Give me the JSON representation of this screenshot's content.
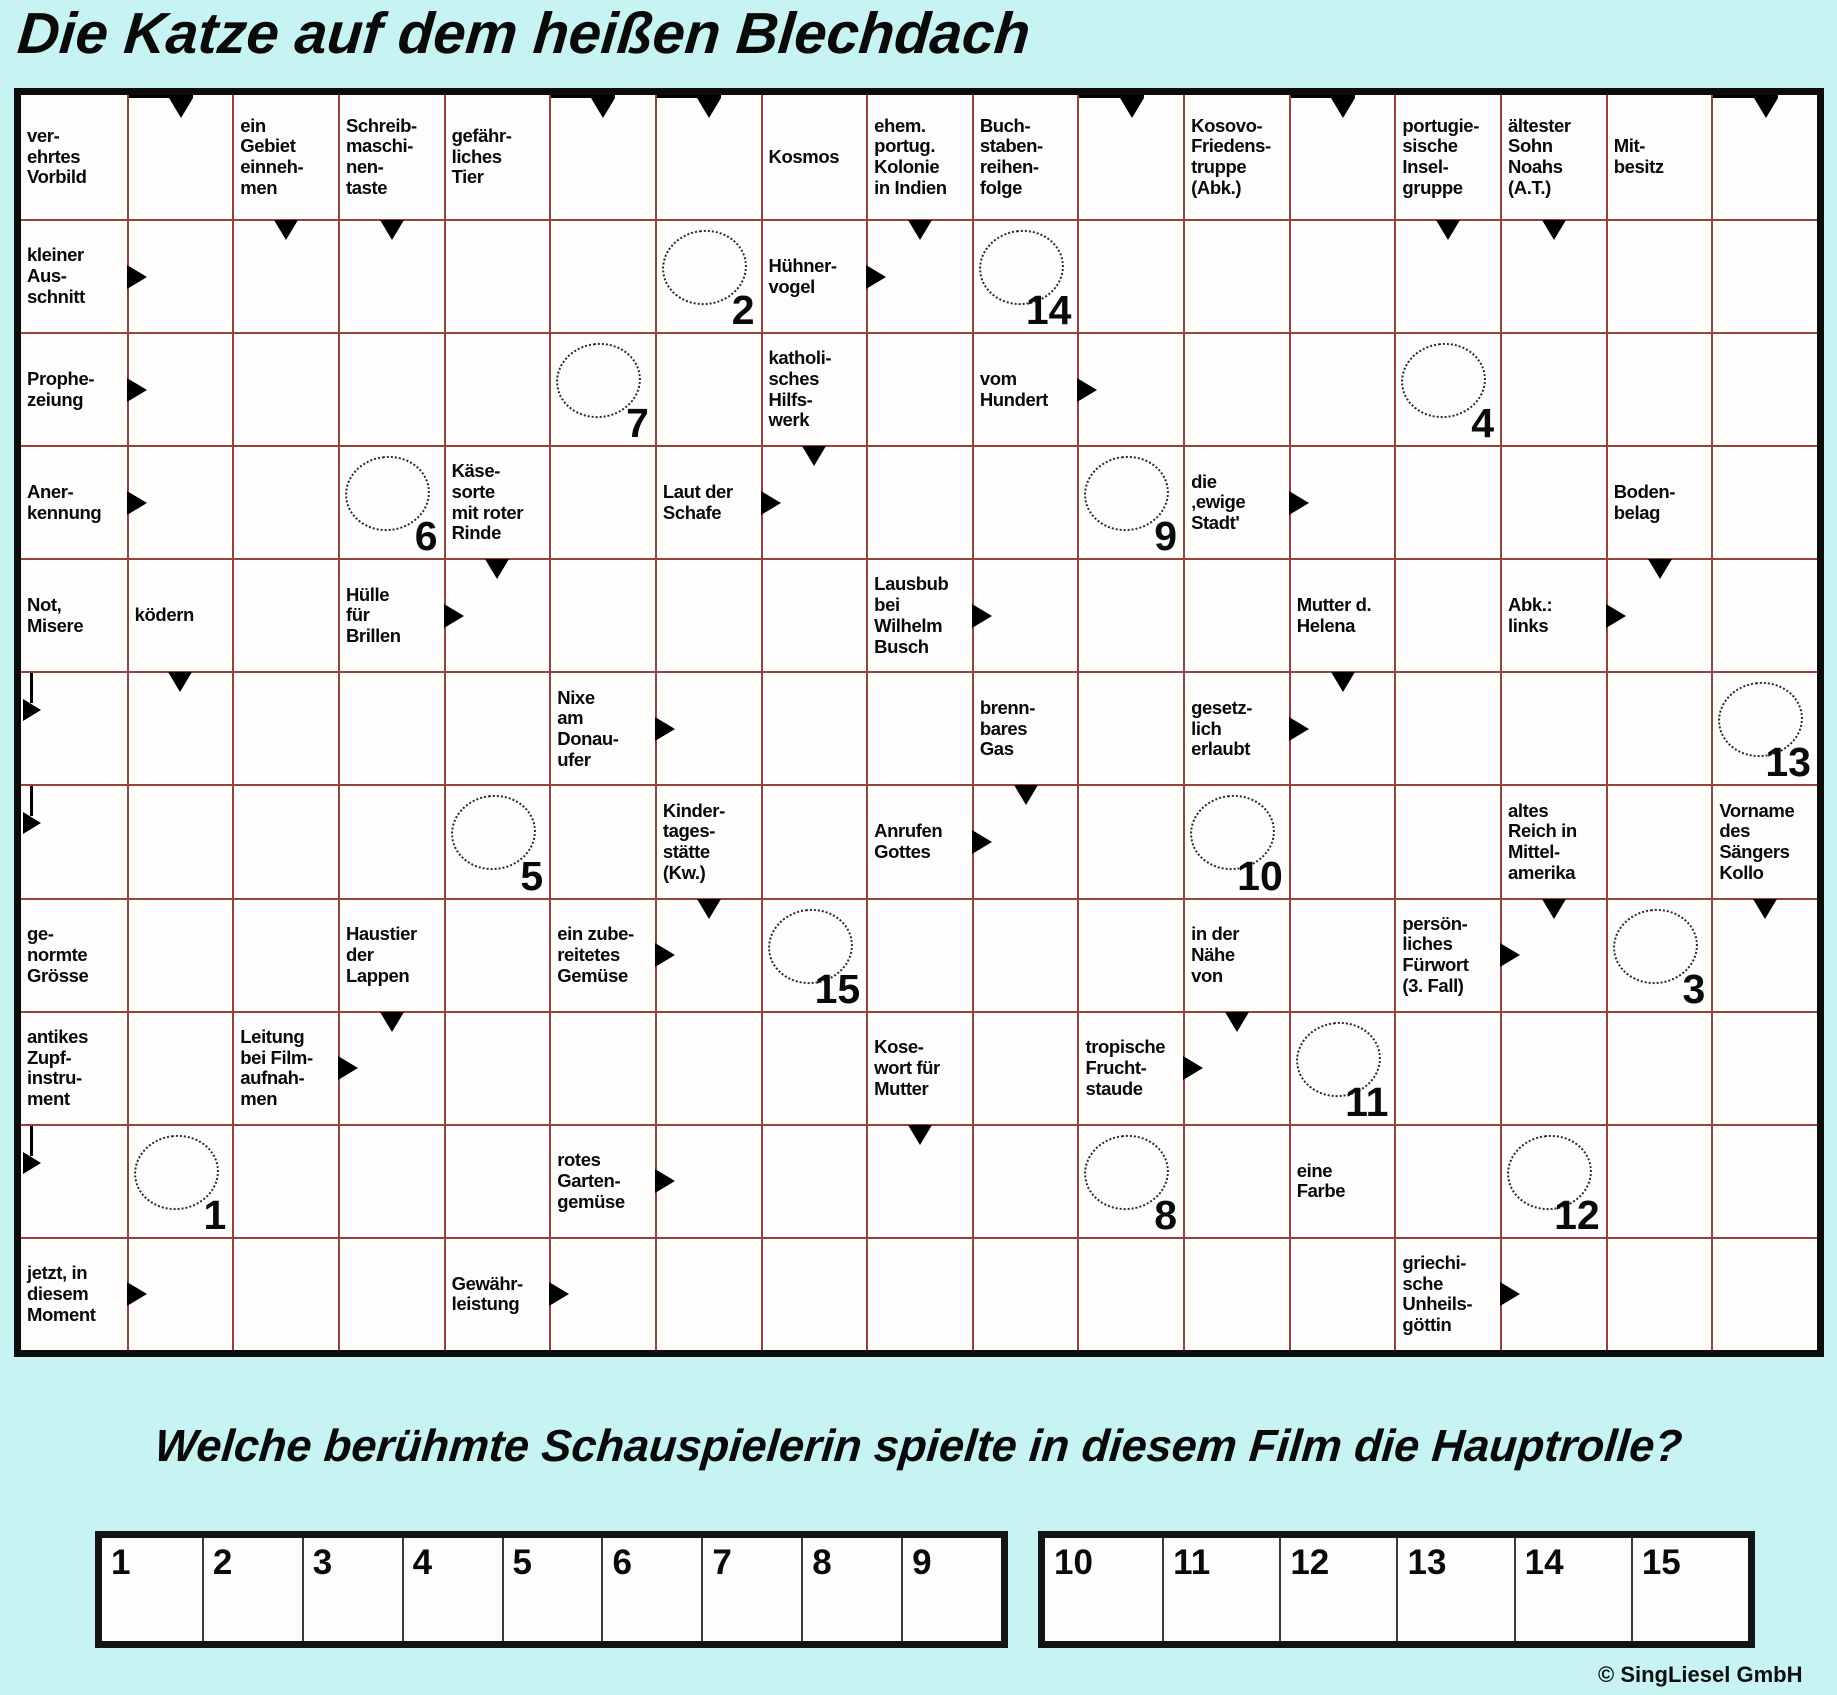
{
  "title": "Die Katze auf dem heißen Blechdach",
  "question": "Welche berühmte Schauspielerin spielte in diesem Film die Hauptrolle?",
  "copyright": "© SingLiesel GmbH",
  "colors": {
    "background": "#c7f4f2",
    "grid_line": "#96413c",
    "cell_background": "#fffdfc",
    "ink": "#000000",
    "border": "#0c0c0c"
  },
  "puzzle": {
    "cols": 17,
    "rows": 11,
    "clues": [
      {
        "r": 1,
        "c": 1,
        "text": "ver-\nehrtes\nVorbild"
      },
      {
        "r": 1,
        "c": 3,
        "text": "ein\nGebiet\neinneh-\nmen"
      },
      {
        "r": 1,
        "c": 4,
        "text": "Schreib-\nmaschi-\nnen-\ntaste"
      },
      {
        "r": 1,
        "c": 5,
        "text": "gefähr-\nliches\nTier"
      },
      {
        "r": 1,
        "c": 8,
        "text": "Kosmos"
      },
      {
        "r": 1,
        "c": 9,
        "text": "ehem.\nportug.\nKolonie\nin Indien"
      },
      {
        "r": 1,
        "c": 10,
        "text": "Buch-\nstaben-\nreihen-\nfolge"
      },
      {
        "r": 1,
        "c": 12,
        "text": "Kosovo-\nFriedens-\ntruppe\n(Abk.)"
      },
      {
        "r": 1,
        "c": 14,
        "text": "portugie-\nsische\nInsel-\ngruppe"
      },
      {
        "r": 1,
        "c": 15,
        "text": "ältester\nSohn\nNoahs\n(A.T.)"
      },
      {
        "r": 1,
        "c": 16,
        "text": "Mit-\nbesitz"
      },
      {
        "r": 2,
        "c": 1,
        "text": "kleiner\nAus-\nschnitt"
      },
      {
        "r": 2,
        "c": 8,
        "text": "Hühner-\nvogel"
      },
      {
        "r": 3,
        "c": 1,
        "text": "Prophe-\nzeiung"
      },
      {
        "r": 3,
        "c": 8,
        "text": "katholi-\nsches\nHilfs-\nwerk"
      },
      {
        "r": 3,
        "c": 10,
        "text": "vom\nHundert"
      },
      {
        "r": 4,
        "c": 1,
        "text": "Aner-\nkennung"
      },
      {
        "r": 4,
        "c": 5,
        "text": "Käse-\nsorte\nmit roter\nRinde"
      },
      {
        "r": 4,
        "c": 7,
        "text": "Laut der\nSchafe"
      },
      {
        "r": 4,
        "c": 12,
        "text": "die\n‚ewige\nStadt'"
      },
      {
        "r": 4,
        "c": 16,
        "text": "Boden-\nbelag"
      },
      {
        "r": 5,
        "c": 1,
        "text": "Not,\nMisere"
      },
      {
        "r": 5,
        "c": 2,
        "text": "ködern"
      },
      {
        "r": 5,
        "c": 4,
        "text": "Hülle\nfür\nBrillen"
      },
      {
        "r": 5,
        "c": 9,
        "text": "Lausbub\nbei\nWilhelm\nBusch"
      },
      {
        "r": 5,
        "c": 13,
        "text": "Mutter d.\nHelena"
      },
      {
        "r": 5,
        "c": 15,
        "text": "Abk.:\nlinks"
      },
      {
        "r": 6,
        "c": 6,
        "text": "Nixe\nam\nDonau-\nufer"
      },
      {
        "r": 6,
        "c": 10,
        "text": "brenn-\nbares\nGas"
      },
      {
        "r": 6,
        "c": 12,
        "text": "gesetz-\nlich\nerlaubt"
      },
      {
        "r": 7,
        "c": 7,
        "text": "Kinder-\ntages-\nstätte\n(Kw.)"
      },
      {
        "r": 7,
        "c": 9,
        "text": "Anrufen\nGottes"
      },
      {
        "r": 7,
        "c": 15,
        "text": "altes\nReich in\nMittel-\namerika"
      },
      {
        "r": 7,
        "c": 17,
        "text": "Vorname\ndes\nSängers\nKollo"
      },
      {
        "r": 8,
        "c": 1,
        "text": "ge-\nnormte\nGrösse"
      },
      {
        "r": 8,
        "c": 4,
        "text": "Haustier\nder\nLappen"
      },
      {
        "r": 8,
        "c": 6,
        "text": "ein zube-\nreitetes\nGemüse"
      },
      {
        "r": 8,
        "c": 12,
        "text": "in der\nNähe\nvon"
      },
      {
        "r": 8,
        "c": 14,
        "text": "persön-\nliches\nFürwort\n(3. Fall)"
      },
      {
        "r": 9,
        "c": 1,
        "text": "antikes\nZupf-\ninstru-\nment"
      },
      {
        "r": 9,
        "c": 3,
        "text": "Leitung\nbei Film-\naufnah-\nmen"
      },
      {
        "r": 9,
        "c": 9,
        "text": "Kose-\nwort für\nMutter"
      },
      {
        "r": 9,
        "c": 11,
        "text": "tropische\nFrucht-\nstaude"
      },
      {
        "r": 10,
        "c": 6,
        "text": "rotes\nGarten-\ngemüse"
      },
      {
        "r": 10,
        "c": 13,
        "text": "eine\nFarbe"
      },
      {
        "r": 11,
        "c": 1,
        "text": "jetzt, in\ndiesem\nMoment"
      },
      {
        "r": 11,
        "c": 5,
        "text": "Gewähr-\nleistung"
      },
      {
        "r": 11,
        "c": 14,
        "text": "griechi-\nsche\nUnheils-\ngöttin"
      }
    ],
    "circles": [
      {
        "r": 2,
        "c": 7,
        "n": "2"
      },
      {
        "r": 2,
        "c": 10,
        "n": "14"
      },
      {
        "r": 3,
        "c": 6,
        "n": "7"
      },
      {
        "r": 3,
        "c": 14,
        "n": "4"
      },
      {
        "r": 4,
        "c": 4,
        "n": "6"
      },
      {
        "r": 4,
        "c": 11,
        "n": "9"
      },
      {
        "r": 6,
        "c": 17,
        "n": "13"
      },
      {
        "r": 7,
        "c": 5,
        "n": "5"
      },
      {
        "r": 7,
        "c": 12,
        "n": "10"
      },
      {
        "r": 8,
        "c": 8,
        "n": "15"
      },
      {
        "r": 8,
        "c": 16,
        "n": "3"
      },
      {
        "r": 9,
        "c": 13,
        "n": "11"
      },
      {
        "r": 10,
        "c": 2,
        "n": "1"
      },
      {
        "r": 10,
        "c": 11,
        "n": "8"
      },
      {
        "r": 10,
        "c": 15,
        "n": "12"
      }
    ],
    "markers": {
      "top_line_down_arrows": [
        [
          1,
          2
        ],
        [
          1,
          6
        ],
        [
          1,
          7
        ],
        [
          1,
          11
        ],
        [
          1,
          13
        ],
        [
          1,
          17
        ]
      ],
      "down_arrows": [
        [
          2,
          3
        ],
        [
          2,
          4
        ],
        [
          2,
          9
        ],
        [
          2,
          14
        ],
        [
          2,
          15
        ],
        [
          4,
          8
        ],
        [
          5,
          5
        ],
        [
          5,
          16
        ],
        [
          6,
          2
        ],
        [
          6,
          13
        ],
        [
          7,
          10
        ],
        [
          8,
          7
        ],
        [
          8,
          15
        ],
        [
          8,
          17
        ],
        [
          9,
          4
        ],
        [
          9,
          12
        ],
        [
          10,
          9
        ]
      ],
      "right_arrows": [
        [
          2,
          2
        ],
        [
          2,
          9
        ],
        [
          3,
          2
        ],
        [
          3,
          11
        ],
        [
          4,
          2
        ],
        [
          4,
          8
        ],
        [
          4,
          13
        ],
        [
          5,
          5
        ],
        [
          5,
          10
        ],
        [
          5,
          16
        ],
        [
          6,
          7
        ],
        [
          6,
          13
        ],
        [
          7,
          10
        ],
        [
          8,
          7
        ],
        [
          8,
          15
        ],
        [
          9,
          4
        ],
        [
          9,
          12
        ],
        [
          10,
          7
        ],
        [
          11,
          2
        ],
        [
          11,
          6
        ],
        [
          11,
          15
        ]
      ],
      "bent_left_arrows": [
        [
          6,
          1
        ],
        [
          7,
          1
        ],
        [
          10,
          1
        ]
      ]
    }
  },
  "answer_boxes": {
    "left": [
      "1",
      "2",
      "3",
      "4",
      "5",
      "6",
      "7",
      "8",
      "9"
    ],
    "right": [
      "10",
      "11",
      "12",
      "13",
      "14",
      "15"
    ]
  }
}
